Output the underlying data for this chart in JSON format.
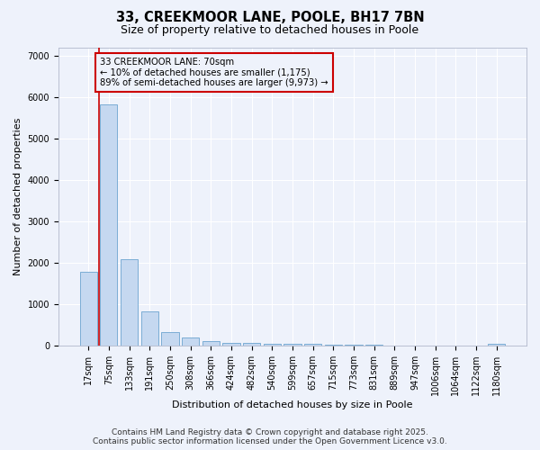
{
  "title1": "33, CREEKMOOR LANE, POOLE, BH17 7BN",
  "title2": "Size of property relative to detached houses in Poole",
  "xlabel": "Distribution of detached houses by size in Poole",
  "ylabel": "Number of detached properties",
  "categories": [
    "17sqm",
    "75sqm",
    "133sqm",
    "191sqm",
    "250sqm",
    "308sqm",
    "366sqm",
    "424sqm",
    "482sqm",
    "540sqm",
    "599sqm",
    "657sqm",
    "715sqm",
    "773sqm",
    "831sqm",
    "889sqm",
    "947sqm",
    "1006sqm",
    "1064sqm",
    "1122sqm",
    "1180sqm"
  ],
  "values": [
    1780,
    5820,
    2090,
    820,
    340,
    200,
    110,
    80,
    65,
    55,
    45,
    38,
    30,
    25,
    20,
    15,
    12,
    10,
    8,
    6,
    55
  ],
  "bar_color": "#c5d8f0",
  "bar_edgecolor": "#7badd4",
  "vline_x": 0.5,
  "vline_color": "#cc0000",
  "annotation_title": "33 CREEKMOOR LANE: 70sqm",
  "annotation_line1": "← 10% of detached houses are smaller (1,175)",
  "annotation_line2": "89% of semi-detached houses are larger (9,973) →",
  "annotation_box_color": "#cc0000",
  "footer1": "Contains HM Land Registry data © Crown copyright and database right 2025.",
  "footer2": "Contains public sector information licensed under the Open Government Licence v3.0.",
  "ylim": [
    0,
    7200
  ],
  "background_color": "#eef2fb",
  "grid_color": "#ffffff",
  "title_fontsize": 10.5,
  "subtitle_fontsize": 9,
  "axis_fontsize": 8,
  "tick_fontsize": 7,
  "footer_fontsize": 6.5
}
